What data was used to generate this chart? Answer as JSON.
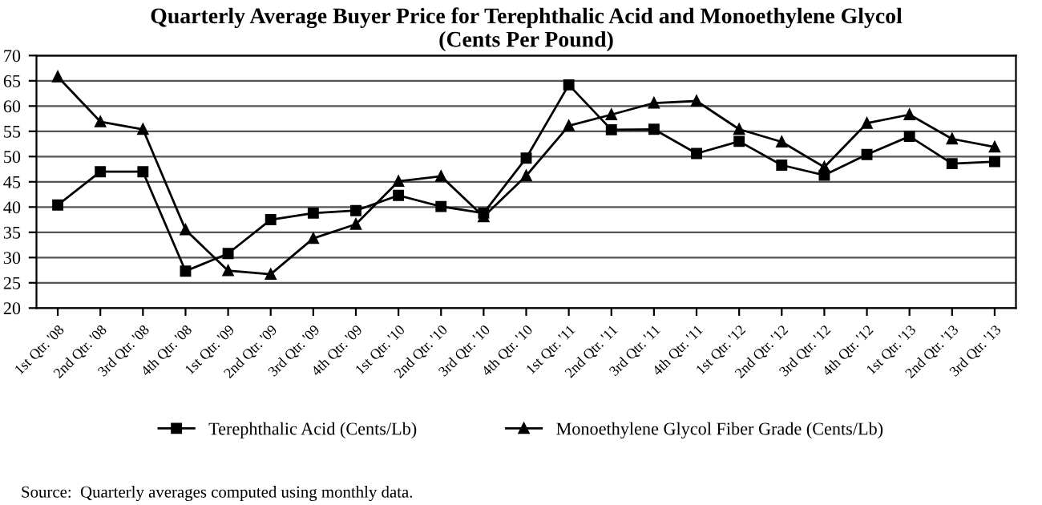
{
  "chart_data": {
    "type": "line",
    "title": "Quarterly Average Buyer Price for Terephthalic Acid and Monoethylene Glycol\n(Cents Per Pound)",
    "categories": [
      "1st Qtr. '08",
      "2nd Qtr. '08",
      "3rd Qtr. '08",
      "4th Qtr. '08",
      "1st Qtr. '09",
      "2nd Qtr. '09",
      "3rd Qtr. '09",
      "4th Qtr. '09",
      "1st Qtr. '10",
      "2nd Qtr. '10",
      "3rd Qtr. '10",
      "4th Qtr. '10",
      "1st Qtr. '11",
      "2nd Qtr. '11",
      "3rd Qtr. '11",
      "4th Qtr. '11",
      "1st Qtr. '12",
      "2nd Qtr. '12",
      "3rd Qtr. '12",
      "4th Qtr. '12",
      "1st Qtr. '13",
      "2nd Qtr. '13",
      "3rd Qtr. '13"
    ],
    "series": [
      {
        "name": "Terephthalic Acid (Cents/Lb)",
        "color": "#000000",
        "marker": "square",
        "values": [
          40.4,
          47,
          47,
          27.3,
          30.8,
          37.5,
          38.8,
          39.3,
          42.3,
          40.1,
          38.8,
          49.7,
          64.2,
          55.3,
          55.4,
          50.6,
          53,
          48.3,
          46.3,
          50.4,
          54,
          48.6,
          49
        ]
      },
      {
        "name": "Monoethylene Glycol Fiber Grade (Cents/Lb)",
        "color": "#000000",
        "marker": "triangle",
        "values": [
          65.8,
          56.9,
          55.4,
          35.5,
          27.4,
          26.7,
          33.8,
          36.6,
          45.1,
          46.1,
          38.1,
          46.2,
          56.1,
          58.3,
          60.6,
          61,
          55.4,
          52.9,
          47.9,
          56.6,
          58.3,
          53.5,
          51.9
        ]
      }
    ],
    "ylim": [
      20,
      70
    ],
    "yticks": [
      20,
      25,
      30,
      35,
      40,
      45,
      50,
      55,
      60,
      65,
      70
    ],
    "grid": "y",
    "legend": "bottom",
    "line_style": "solid",
    "annotations": [
      "Source:  Quarterly averages computed using monthly data."
    ]
  }
}
